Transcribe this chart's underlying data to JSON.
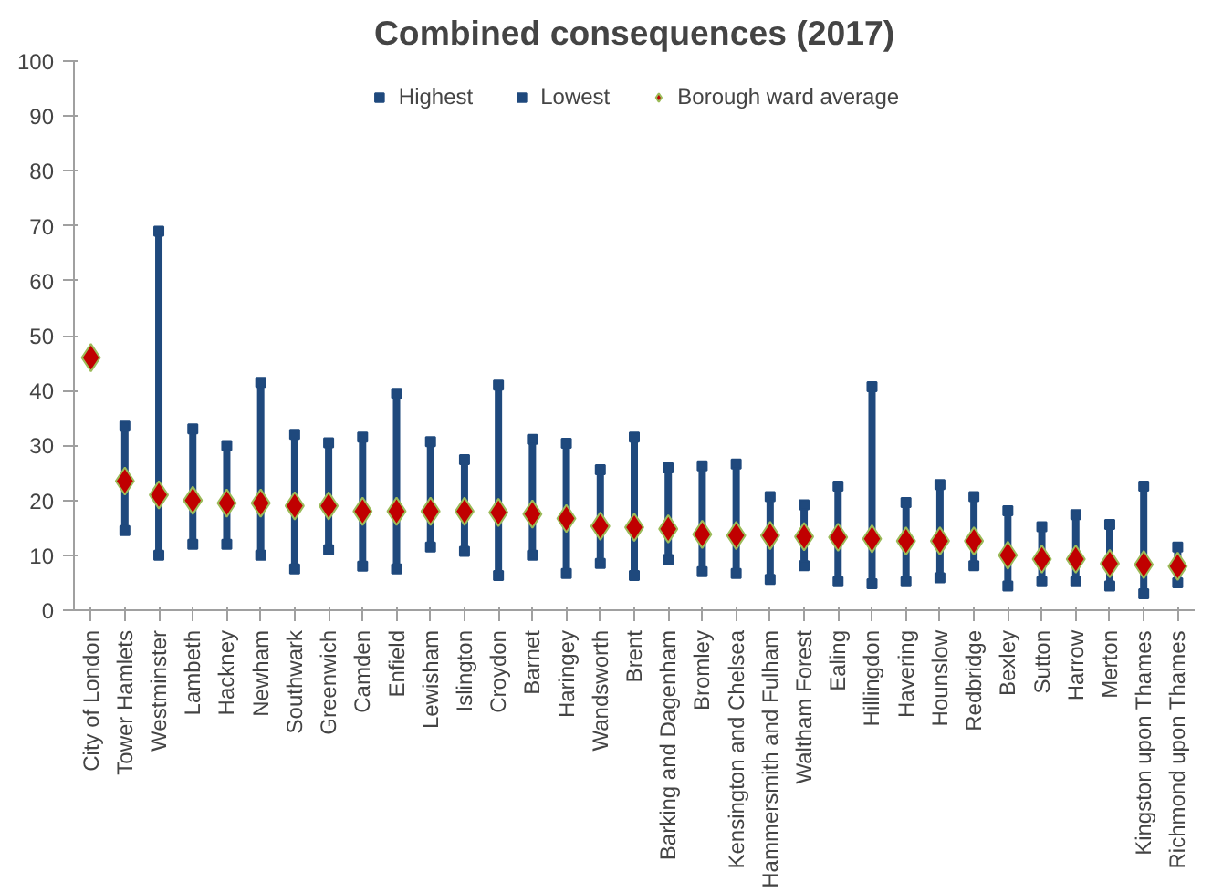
{
  "chart_data": {
    "type": "scatter",
    "title": "Combined consequences (2017)",
    "categories": [
      "City of London",
      "Tower Hamlets",
      "Westminster",
      "Lambeth",
      "Hackney",
      "Newham",
      "Southwark",
      "Greenwich",
      "Camden",
      "Enfield",
      "Lewisham",
      "Islington",
      "Croydon",
      "Barnet",
      "Haringey",
      "Wandsworth",
      "Brent",
      "Barking and Dagenham",
      "Bromley",
      "Kensington and Chelsea",
      "Hammersmith and Fulham",
      "Waltham Forest",
      "Ealing",
      "Hillingdon",
      "Havering",
      "Hounslow",
      "Redbridge",
      "Bexley",
      "Sutton",
      "Harrow",
      "Merton",
      "Kingston upon Thames",
      "Richmond upon Thames"
    ],
    "series": [
      {
        "name": "Highest",
        "color": "#1f497d",
        "marker": "square",
        "values": [
          null,
          33.5,
          69,
          33,
          30,
          41.5,
          32,
          30.5,
          31.5,
          39.5,
          30.7,
          27.4,
          41,
          31.1,
          30.4,
          25.6,
          31.5,
          25.9,
          26.3,
          26.6,
          20.7,
          19.2,
          22.6,
          40.7,
          19.6,
          22.9,
          20.7,
          18.1,
          15.2,
          17.4,
          15.6,
          22.6,
          11.5
        ]
      },
      {
        "name": "Lowest",
        "color": "#1f497d",
        "marker": "square",
        "values": [
          null,
          14.5,
          10,
          12,
          12,
          10,
          7.5,
          11,
          8,
          7.5,
          11.5,
          10.7,
          6.3,
          10,
          6.7,
          8.5,
          6.3,
          9.2,
          7,
          6.7,
          5.6,
          8.1,
          5.2,
          4.8,
          5.2,
          5.9,
          8.1,
          4.4,
          5.2,
          5.2,
          4.4,
          3,
          5
        ]
      },
      {
        "name": "Borough ward average",
        "color": "#c00000",
        "marker": "diamond",
        "values": [
          46,
          23.5,
          21,
          20,
          19.5,
          19.5,
          19,
          19,
          18,
          18,
          18,
          18,
          17.8,
          17.5,
          16.7,
          15.3,
          15.1,
          14.8,
          13.8,
          13.6,
          13.6,
          13.4,
          13.3,
          13,
          12.6,
          12.6,
          12.6,
          10,
          9.3,
          9.3,
          8.5,
          8.3,
          8
        ]
      }
    ],
    "ylim": [
      0,
      100
    ],
    "yticks": [
      0,
      10,
      20,
      30,
      40,
      50,
      60,
      70,
      80,
      90,
      100
    ],
    "grid": false,
    "legend": "top"
  }
}
